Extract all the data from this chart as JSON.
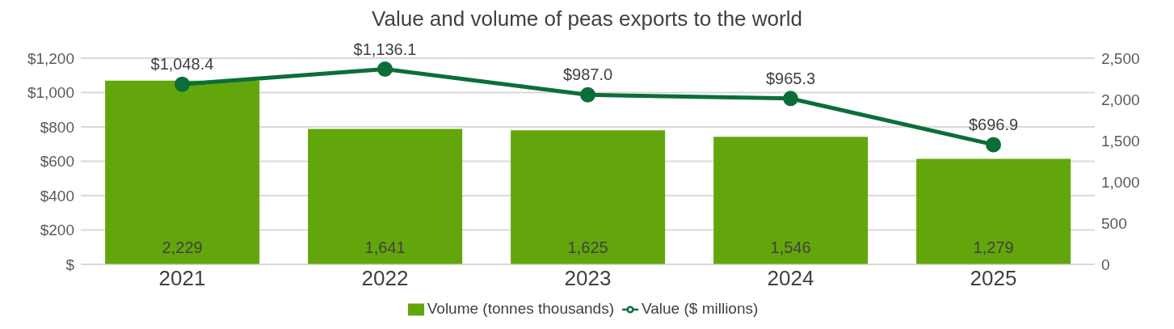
{
  "chart_data": {
    "type": "bar",
    "title": "Value and volume of peas exports to the world",
    "categories": [
      "2021",
      "2022",
      "2023",
      "2024",
      "2025"
    ],
    "series": [
      {
        "name": "Volume (tonnes thousands)",
        "axis": "y2",
        "color": "#63a60b",
        "values": [
          2229,
          1641,
          1625,
          1546,
          1279
        ],
        "value_labels": [
          "2,229",
          "1,641",
          "1,625",
          "1,546",
          "1,279"
        ]
      },
      {
        "name": "Value ($ millions)",
        "type": "line",
        "axis": "y",
        "color": "#0b6e3a",
        "marker": "circle",
        "values": [
          1048.4,
          1136.1,
          987.0,
          965.3,
          696.9
        ],
        "value_labels": [
          "$1,048.4",
          "$1,136.1",
          "$987.0",
          "$965.3",
          "$696.9"
        ]
      }
    ],
    "ylim": [
      0,
      1200
    ],
    "yticks": [
      {
        "value": 0,
        "label": "$"
      },
      {
        "value": 200,
        "label": "$200"
      },
      {
        "value": 400,
        "label": "$400"
      },
      {
        "value": 600,
        "label": "$600"
      },
      {
        "value": 800,
        "label": "$800"
      },
      {
        "value": 1000,
        "label": "$1,000"
      },
      {
        "value": 1200,
        "label": "$1,200"
      }
    ],
    "y2lim": [
      0,
      2500
    ],
    "y2ticks": [
      0,
      {
        "value": 500,
        "label": "500"
      },
      {
        "value": 1000,
        "label": "1,000"
      },
      {
        "value": 1500,
        "label": "1,500"
      },
      {
        "value": 2000,
        "label": "2,000"
      },
      {
        "value": 2500,
        "label": "2,500"
      }
    ],
    "grid": "y",
    "legend": "bottom"
  }
}
